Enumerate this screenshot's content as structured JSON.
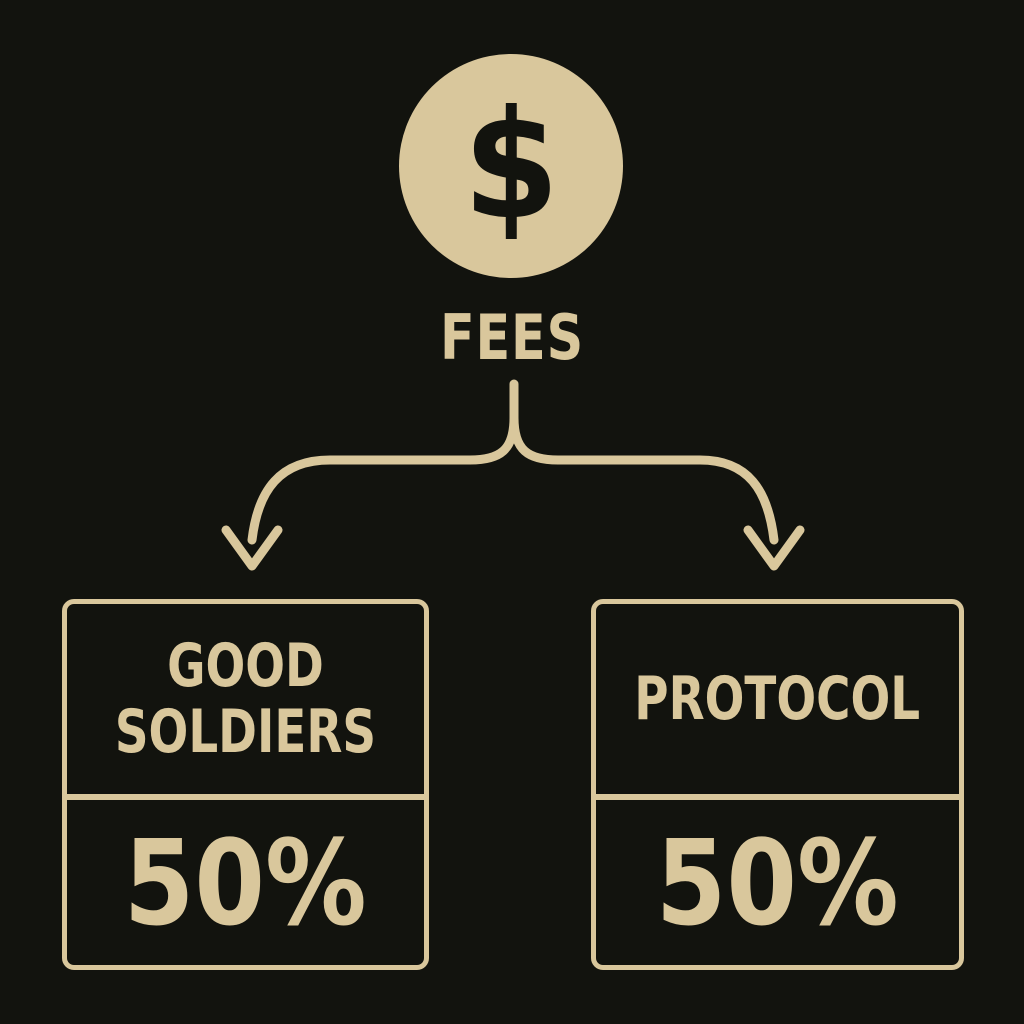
{
  "source": {
    "icon": "dollar-coin-icon",
    "symbol": "$",
    "label": "FEES"
  },
  "splits": [
    {
      "label": "GOOD\nSOLDIERS",
      "value": "50%"
    },
    {
      "label": "PROTOCOL",
      "value": "50%"
    }
  ],
  "colors": {
    "background": "#12130e",
    "accent": "#d9c79c"
  }
}
